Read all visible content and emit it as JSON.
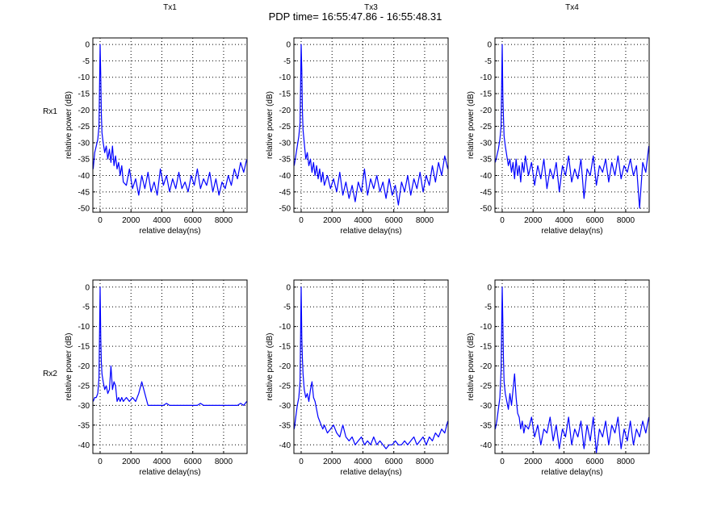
{
  "figure_title": "PDP time= 16:55:47.86 - 16:55:48.31",
  "row_labels": [
    "Rx1",
    "Rx2"
  ],
  "colors": {
    "line": "#0000ff",
    "axes": "#000000",
    "grid": "#000000"
  },
  "chart_data": [
    {
      "type": "line",
      "title": "Tx1",
      "row": "Rx1",
      "xlabel": "relative delay(ns)",
      "ylabel": "relative power (dB)",
      "xlim": [
        -470,
        9520
      ],
      "ylim": [
        -51.2,
        2
      ],
      "grid": true,
      "xticks": [
        0,
        2000,
        4000,
        6000,
        8000
      ],
      "yticks": [
        0,
        -5,
        -10,
        -15,
        -20,
        -25,
        -30,
        -35,
        -40,
        -45,
        -50
      ],
      "x": [
        -450,
        -350,
        -250,
        -150,
        -75,
        0,
        40,
        80,
        120,
        200,
        300,
        400,
        500,
        600,
        700,
        800,
        900,
        1000,
        1100,
        1200,
        1300,
        1400,
        1500,
        1700,
        1900,
        2100,
        2300,
        2500,
        2700,
        2900,
        3100,
        3300,
        3500,
        3700,
        3900,
        4100,
        4300,
        4500,
        4700,
        4900,
        5100,
        5300,
        5500,
        5700,
        5900,
        6100,
        6300,
        6500,
        6700,
        6900,
        7100,
        7300,
        7500,
        7700,
        7900,
        8100,
        8300,
        8500,
        8700,
        8900,
        9100,
        9300,
        9500
      ],
      "y": [
        -38,
        -33,
        -31,
        -29,
        -25,
        0,
        -10,
        -21,
        -27,
        -30,
        -33,
        -31,
        -35,
        -32,
        -36,
        -31,
        -37,
        -34,
        -38,
        -36,
        -40,
        -37,
        -42,
        -43,
        -38,
        -44,
        -41,
        -46,
        -40,
        -44,
        -39,
        -45,
        -42,
        -46,
        -38,
        -43,
        -40,
        -45,
        -41,
        -44,
        -39,
        -44,
        -42,
        -45,
        -40,
        -43,
        -38,
        -44,
        -41,
        -43,
        -39,
        -45,
        -41,
        -46,
        -42,
        -44,
        -40,
        -43,
        -38,
        -41,
        -36,
        -39,
        -35
      ]
    },
    {
      "type": "line",
      "title": "Tx3",
      "row": "Rx1",
      "xlabel": "relative delay(ns)",
      "ylabel": "relative power (dB)",
      "xlim": [
        -470,
        9520
      ],
      "ylim": [
        -51.2,
        2
      ],
      "grid": true,
      "xticks": [
        0,
        2000,
        4000,
        6000,
        8000
      ],
      "yticks": [
        0,
        -5,
        -10,
        -15,
        -20,
        -25,
        -30,
        -35,
        -40,
        -45,
        -50
      ],
      "x": [
        -450,
        -350,
        -250,
        -150,
        -75,
        0,
        40,
        80,
        120,
        200,
        300,
        400,
        500,
        600,
        700,
        800,
        900,
        1000,
        1100,
        1200,
        1300,
        1400,
        1500,
        1700,
        1900,
        2100,
        2300,
        2500,
        2700,
        2900,
        3100,
        3300,
        3500,
        3700,
        3900,
        4100,
        4300,
        4500,
        4700,
        4900,
        5100,
        5300,
        5500,
        5700,
        5900,
        6100,
        6300,
        6500,
        6700,
        6900,
        7100,
        7300,
        7500,
        7700,
        7900,
        8100,
        8300,
        8500,
        8700,
        8900,
        9100,
        9300,
        9500
      ],
      "y": [
        -37,
        -34,
        -31,
        -28,
        -24,
        0,
        -8,
        -20,
        -26,
        -30,
        -35,
        -33,
        -37,
        -35,
        -39,
        -36,
        -40,
        -37,
        -41,
        -38,
        -42,
        -39,
        -43,
        -40,
        -44,
        -41,
        -45,
        -39,
        -46,
        -42,
        -47,
        -43,
        -48,
        -42,
        -45,
        -38,
        -46,
        -41,
        -44,
        -40,
        -45,
        -42,
        -47,
        -41,
        -46,
        -43,
        -49,
        -42,
        -45,
        -40,
        -46,
        -41,
        -44,
        -39,
        -45,
        -40,
        -43,
        -37,
        -42,
        -36,
        -40,
        -34,
        -38
      ]
    },
    {
      "type": "line",
      "title": "Tx4",
      "row": "Rx1",
      "xlabel": "relative delay(ns)",
      "ylabel": "relative power (dB)",
      "xlim": [
        -470,
        9520
      ],
      "ylim": [
        -51.2,
        2
      ],
      "grid": true,
      "xticks": [
        0,
        2000,
        4000,
        6000,
        8000
      ],
      "yticks": [
        0,
        -5,
        -10,
        -15,
        -20,
        -25,
        -30,
        -35,
        -40,
        -45,
        -50
      ],
      "x": [
        -450,
        -350,
        -250,
        -150,
        -75,
        0,
        40,
        80,
        120,
        200,
        300,
        400,
        500,
        600,
        700,
        800,
        900,
        1000,
        1100,
        1200,
        1300,
        1400,
        1500,
        1700,
        1900,
        2100,
        2300,
        2500,
        2700,
        2900,
        3100,
        3300,
        3500,
        3700,
        3900,
        4100,
        4300,
        4500,
        4700,
        4900,
        5100,
        5300,
        5500,
        5700,
        5900,
        6100,
        6300,
        6500,
        6700,
        6900,
        7100,
        7300,
        7500,
        7700,
        7900,
        8100,
        8300,
        8500,
        8700,
        8900,
        9100,
        9300,
        9500
      ],
      "y": [
        -36,
        -34,
        -32,
        -29,
        -25,
        0,
        -16,
        -22,
        -28,
        -31,
        -34,
        -37,
        -35,
        -39,
        -36,
        -41,
        -35,
        -40,
        -37,
        -42,
        -36,
        -39,
        -34,
        -40,
        -36,
        -43,
        -37,
        -41,
        -35,
        -44,
        -38,
        -41,
        -36,
        -45,
        -37,
        -40,
        -34,
        -42,
        -38,
        -41,
        -35,
        -47,
        -38,
        -40,
        -34,
        -43,
        -37,
        -39,
        -35,
        -42,
        -36,
        -40,
        -34,
        -41,
        -37,
        -39,
        -35,
        -40,
        -37,
        -50,
        -36,
        -39,
        -31
      ]
    },
    {
      "type": "line",
      "title": "",
      "row": "Rx2",
      "xlabel": "relative delay(ns)",
      "ylabel": "relative power (dB)",
      "xlim": [
        -470,
        9520
      ],
      "ylim": [
        -42.2,
        1.8
      ],
      "grid": true,
      "xticks": [
        0,
        2000,
        4000,
        6000,
        8000
      ],
      "yticks": [
        0,
        -5,
        -10,
        -15,
        -20,
        -25,
        -30,
        -35,
        -40
      ],
      "x": [
        -450,
        -350,
        -250,
        -150,
        -75,
        0,
        40,
        80,
        120,
        200,
        300,
        400,
        500,
        600,
        700,
        800,
        900,
        1000,
        1100,
        1200,
        1300,
        1400,
        1500,
        1700,
        1900,
        2100,
        2300,
        2500,
        2700,
        2900,
        3100,
        3300,
        3500,
        3700,
        3900,
        4100,
        4300,
        4500,
        4700,
        4900,
        5100,
        5300,
        5500,
        5700,
        5900,
        6100,
        6300,
        6500,
        6700,
        6900,
        7100,
        7300,
        7500,
        7700,
        7900,
        8100,
        8300,
        8500,
        8700,
        8900,
        9100,
        9300,
        9500
      ],
      "y": [
        -29,
        -28,
        -28,
        -27,
        -23,
        0,
        -13,
        -19,
        -22,
        -24,
        -26,
        -25,
        -27,
        -26,
        -20,
        -26,
        -24,
        -25,
        -29,
        -28,
        -29,
        -28,
        -29,
        -28,
        -29,
        -28,
        -29,
        -27,
        -24,
        -27,
        -30,
        -30,
        -30,
        -30,
        -30,
        -30,
        -29.5,
        -30,
        -30,
        -30,
        -30,
        -30,
        -30,
        -30,
        -30,
        -30,
        -30,
        -29.5,
        -30,
        -30,
        -30,
        -30,
        -30,
        -30,
        -30,
        -30,
        -30,
        -30,
        -30,
        -30,
        -29.5,
        -30,
        -29
      ]
    },
    {
      "type": "line",
      "title": "",
      "row": "Rx2",
      "xlabel": "relative delay(ns)",
      "ylabel": "relative power (dB)",
      "xlim": [
        -470,
        9520
      ],
      "ylim": [
        -42.2,
        1.8
      ],
      "grid": true,
      "xticks": [
        0,
        2000,
        4000,
        6000,
        8000
      ],
      "yticks": [
        0,
        -5,
        -10,
        -15,
        -20,
        -25,
        -30,
        -35,
        -40
      ],
      "x": [
        -450,
        -350,
        -250,
        -150,
        -75,
        0,
        40,
        80,
        120,
        200,
        300,
        400,
        500,
        600,
        700,
        800,
        900,
        1000,
        1100,
        1200,
        1300,
        1400,
        1500,
        1700,
        1900,
        2100,
        2300,
        2500,
        2700,
        2900,
        3100,
        3300,
        3500,
        3700,
        3900,
        4100,
        4300,
        4500,
        4700,
        4900,
        5100,
        5300,
        5500,
        5700,
        5900,
        6100,
        6300,
        6500,
        6700,
        6900,
        7100,
        7300,
        7500,
        7700,
        7900,
        8100,
        8300,
        8500,
        8700,
        8900,
        9100,
        9300,
        9500
      ],
      "y": [
        -36,
        -33,
        -30,
        -28,
        -24,
        0,
        -13,
        -18,
        -22,
        -26,
        -28,
        -27,
        -29,
        -26,
        -24,
        -28,
        -29,
        -31,
        -33,
        -34,
        -35,
        -36,
        -35,
        -37,
        -36,
        -35,
        -37,
        -38,
        -35,
        -38,
        -39,
        -38,
        -40,
        -39,
        -38,
        -40,
        -39,
        -40,
        -38,
        -40,
        -39,
        -40,
        -41,
        -40,
        -40,
        -39,
        -40,
        -40,
        -39,
        -40,
        -39,
        -38,
        -40,
        -39,
        -38,
        -40,
        -38,
        -39,
        -37,
        -38,
        -36,
        -37,
        -34
      ]
    },
    {
      "type": "line",
      "title": "",
      "row": "Rx2",
      "xlabel": "relative delay(ns)",
      "ylabel": "relative power (dB)",
      "xlim": [
        -470,
        9520
      ],
      "ylim": [
        -42.2,
        1.8
      ],
      "grid": true,
      "xticks": [
        0,
        2000,
        4000,
        6000,
        8000
      ],
      "yticks": [
        0,
        -5,
        -10,
        -15,
        -20,
        -25,
        -30,
        -35,
        -40
      ],
      "x": [
        -450,
        -350,
        -250,
        -150,
        -75,
        0,
        40,
        80,
        120,
        200,
        300,
        400,
        500,
        600,
        700,
        800,
        900,
        1000,
        1100,
        1200,
        1300,
        1400,
        1500,
        1700,
        1900,
        2100,
        2300,
        2500,
        2700,
        2900,
        3100,
        3300,
        3500,
        3700,
        3900,
        4100,
        4300,
        4500,
        4700,
        4900,
        5100,
        5300,
        5500,
        5700,
        5900,
        6100,
        6300,
        6500,
        6700,
        6900,
        7100,
        7300,
        7500,
        7700,
        7900,
        8100,
        8300,
        8500,
        8700,
        8900,
        9100,
        9300,
        9500
      ],
      "y": [
        -36,
        -34,
        -31,
        -28,
        -21,
        0,
        -9,
        -18,
        -24,
        -27,
        -29,
        -31,
        -27,
        -30,
        -26,
        -22,
        -28,
        -32,
        -33,
        -36,
        -34,
        -37,
        -35,
        -36,
        -33,
        -38,
        -35,
        -40,
        -36,
        -37,
        -33,
        -39,
        -35,
        -41,
        -36,
        -38,
        -33,
        -40,
        -36,
        -38,
        -34,
        -41,
        -35,
        -39,
        -33,
        -42,
        -36,
        -38,
        -34,
        -40,
        -35,
        -37,
        -33,
        -41,
        -36,
        -39,
        -34,
        -40,
        -36,
        -38,
        -34,
        -37,
        -33
      ]
    }
  ]
}
